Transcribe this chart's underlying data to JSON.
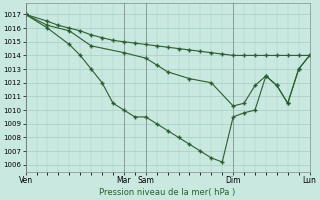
{
  "background_color": "#c8e8e0",
  "grid_color": "#a8ccc4",
  "line_color": "#2a5e30",
  "vline_color": "#3a3a3a",
  "xlabel": "Pression niveau de la mer( hPa )",
  "ylim": [
    1005.5,
    1017.8
  ],
  "yticks": [
    1006,
    1007,
    1008,
    1009,
    1010,
    1011,
    1012,
    1013,
    1014,
    1015,
    1016,
    1017
  ],
  "xlim": [
    0,
    26
  ],
  "xtick_positions": [
    0,
    9,
    11,
    19,
    26
  ],
  "xtick_labels": [
    "Ven",
    "Mar",
    "Sam",
    "Dim",
    "Lun"
  ],
  "vline_positions": [
    0,
    9,
    11,
    19,
    26
  ],
  "series_upper_x": [
    0,
    2,
    3,
    4,
    5,
    6,
    7,
    8,
    9,
    10,
    11,
    12,
    13,
    14,
    15,
    16,
    17,
    18,
    19,
    20,
    21,
    22,
    23,
    24,
    25,
    26
  ],
  "series_upper_y": [
    1017,
    1016.5,
    1016.2,
    1016.0,
    1015.8,
    1015.5,
    1015.3,
    1015.1,
    1015.0,
    1014.9,
    1014.8,
    1014.7,
    1014.6,
    1014.5,
    1014.4,
    1014.3,
    1014.2,
    1014.1,
    1014.0,
    1014.0,
    1014.0,
    1014.0,
    1014.0,
    1014.0,
    1014.0,
    1014.0
  ],
  "series_mid_x": [
    0,
    2,
    4,
    6,
    9,
    11,
    12,
    13,
    15,
    17,
    19,
    20,
    21,
    22,
    23,
    24,
    25,
    26
  ],
  "series_mid_y": [
    1017,
    1016.2,
    1015.8,
    1014.7,
    1014.2,
    1013.8,
    1013.3,
    1012.8,
    1012.3,
    1012.0,
    1010.3,
    1010.5,
    1011.8,
    1012.5,
    1011.8,
    1010.5,
    1013.0,
    1014.0
  ],
  "series_lower_x": [
    0,
    2,
    4,
    5,
    6,
    7,
    8,
    9,
    10,
    11,
    12,
    13,
    14,
    15,
    16,
    17,
    18,
    19,
    20,
    21,
    22,
    23,
    24,
    25,
    26
  ],
  "series_lower_y": [
    1017,
    1016.0,
    1014.8,
    1014.0,
    1013.0,
    1012.0,
    1010.5,
    1010.0,
    1009.5,
    1009.5,
    1009.0,
    1008.5,
    1008.0,
    1007.5,
    1007.0,
    1006.5,
    1006.2,
    1009.5,
    1009.8,
    1010.0,
    1012.5,
    1011.8,
    1010.5,
    1013.0,
    1014.0
  ]
}
